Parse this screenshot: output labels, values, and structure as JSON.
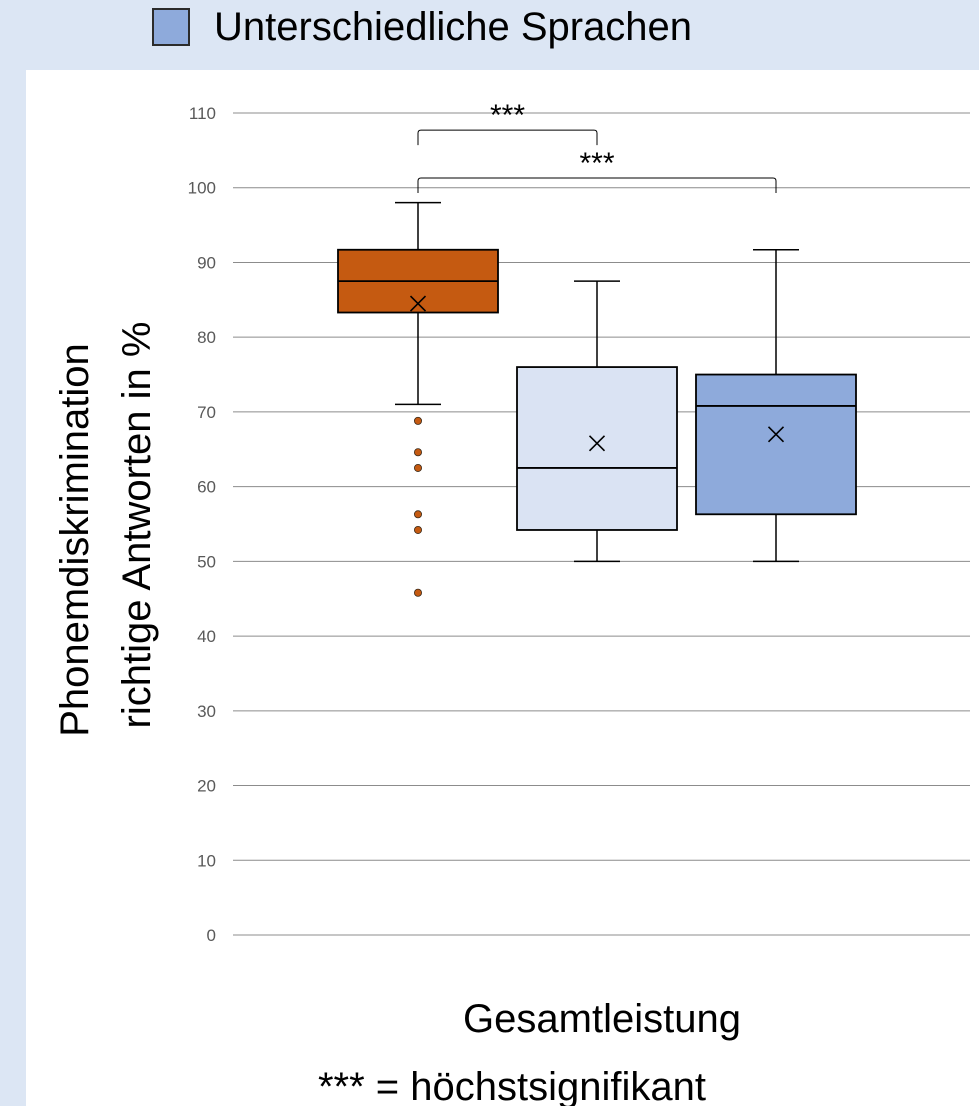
{
  "legend": {
    "label": "Unterschiedliche Sprachen",
    "swatch_color": "#8eaadb"
  },
  "footnote": "*** = höchstsignifikant",
  "chart_data": {
    "type": "box",
    "xlabel": "Gesamtleistung",
    "ylabel_line1": "Phonemdiskrimination",
    "ylabel_line2": "richtige Antworten in %",
    "ylim": [
      0,
      110
    ],
    "yticks": [
      0,
      10,
      20,
      30,
      40,
      50,
      60,
      70,
      80,
      90,
      100,
      110
    ],
    "grid": true,
    "series": [
      {
        "color": "#c55a11",
        "whisker_low": 71,
        "q1": 83.3,
        "median": 87.5,
        "q3": 91.7,
        "whisker_high": 98,
        "mean": 84.5,
        "outliers": [
          68.8,
          64.6,
          62.5,
          56.3,
          54.2,
          45.8
        ]
      },
      {
        "color": "#dae3f3",
        "whisker_low": 50,
        "q1": 54.2,
        "median": 62.5,
        "q3": 76,
        "whisker_high": 87.5,
        "mean": 65.8,
        "outliers": []
      },
      {
        "name": "Unterschiedliche Sprachen",
        "color": "#8eaadb",
        "whisker_low": 50,
        "q1": 56.3,
        "median": 70.8,
        "q3": 75,
        "whisker_high": 91.7,
        "mean": 67,
        "outliers": []
      }
    ],
    "significance": [
      {
        "from": 0,
        "to": 1,
        "label": "***"
      },
      {
        "from": 0,
        "to": 2,
        "label": "***"
      }
    ]
  }
}
